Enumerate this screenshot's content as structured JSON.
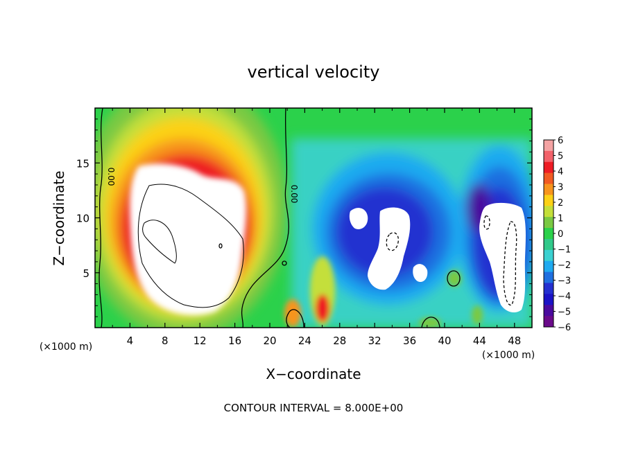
{
  "chart_data": {
    "type": "heatmap",
    "title": "vertical velocity",
    "xlabel": "X−coordinate",
    "ylabel": "Z−coordinate",
    "x_unit_left": "(×1000 m)",
    "x_unit_right": "(×1000 m)",
    "footer": "CONTOUR INTERVAL = 8.000E+00",
    "xlim": [
      0,
      50
    ],
    "ylim": [
      0,
      20
    ],
    "x_ticks": [
      4,
      8,
      12,
      16,
      20,
      24,
      28,
      32,
      36,
      40,
      44,
      48
    ],
    "y_ticks": [
      5,
      10,
      15
    ],
    "x_tick_labels": [
      "4",
      "8",
      "12",
      "16",
      "20",
      "24",
      "28",
      "32",
      "36",
      "40",
      "44",
      "48"
    ],
    "y_tick_labels": [
      "5",
      "10",
      "15"
    ],
    "colorbar": {
      "min": -6,
      "max": 6,
      "ticks": [
        6,
        5,
        4,
        3,
        2,
        1,
        0,
        -1,
        -2,
        -3,
        -4,
        -5,
        -6
      ],
      "tick_labels": [
        "6",
        "5",
        "4",
        "3",
        "2",
        "1",
        "0",
        "−1",
        "−2",
        "−3",
        "−4",
        "−5",
        "−6"
      ],
      "colors": [
        "#f4a3a3",
        "#f2626a",
        "#ee1c24",
        "#f15a22",
        "#f7941d",
        "#fcd116",
        "#c4df3a",
        "#7ac943",
        "#2bd14b",
        "#31c98a",
        "#3bd1d1",
        "#1faaf0",
        "#1f6fe0",
        "#2430d0",
        "#1b13c6",
        "#4a0a9e",
        "#6a0a8a"
      ]
    },
    "contour_labels": [
      "0.00",
      "0.00"
    ],
    "features": [
      {
        "name": "updraft-core",
        "x_center": 9.5,
        "z_center": 9.5,
        "x_range": [
          4.5,
          16.5
        ],
        "z_range": [
          2,
          14
        ],
        "max_value": 6
      },
      {
        "name": "downdraft-center",
        "x_center": 34,
        "z_center": 8,
        "x_range": [
          29.5,
          38
        ],
        "z_range": [
          4,
          11
        ],
        "min_value": -6
      },
      {
        "name": "downdraft-right",
        "x_center": 46.5,
        "z_center": 6,
        "x_range": [
          44,
          49.5
        ],
        "z_range": [
          1.5,
          11
        ],
        "min_value": -6
      },
      {
        "name": "small-updraft-a",
        "x_center": 22.5,
        "z_center": 1.5,
        "max_value": 3
      },
      {
        "name": "small-updraft-b",
        "x_center": 26,
        "z_center": 2,
        "max_value": 4
      }
    ]
  }
}
